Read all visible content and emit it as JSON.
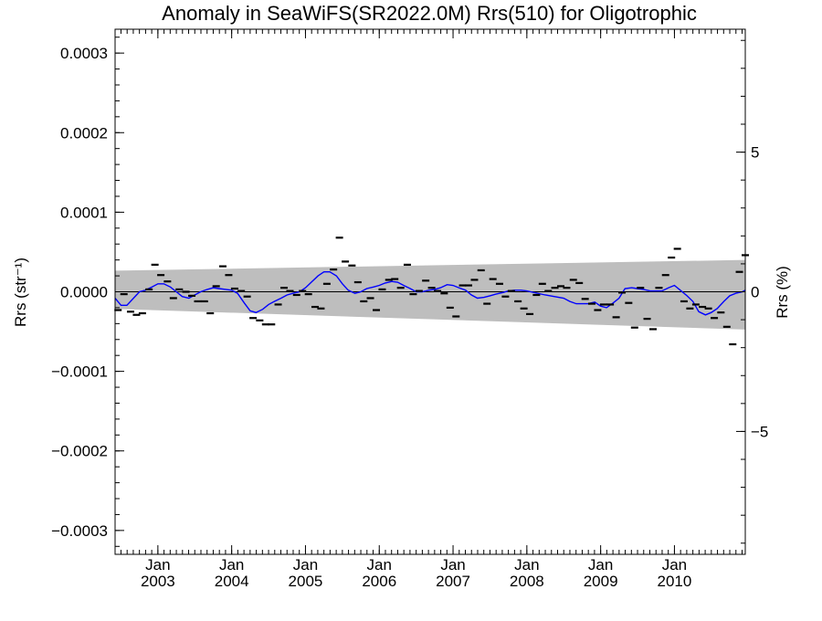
{
  "chart_data": {
    "type": "scatter",
    "title": "Anomaly in SeaWiFS(SR2022.0M) Rrs(510) for Oligotrophic",
    "ylabel": "Rrs (str⁻¹)",
    "y2label": "Rrs (%)",
    "xlim": [
      2002.42,
      2010.96
    ],
    "ylim": [
      -0.00033,
      0.00033
    ],
    "y2lim": [
      -9.4,
      9.4
    ],
    "yticks": [
      {
        "value": 0.0003,
        "label": "0.0003"
      },
      {
        "value": 0.0002,
        "label": "0.0002"
      },
      {
        "value": 0.0001,
        "label": "0.0001"
      },
      {
        "value": 0.0,
        "label": "0.0000"
      },
      {
        "value": -0.0001,
        "label": "−0.0001"
      },
      {
        "value": -0.0002,
        "label": "−0.0002"
      },
      {
        "value": -0.0003,
        "label": "−0.0003"
      }
    ],
    "y2ticks": [
      {
        "value": 5,
        "label": "5"
      },
      {
        "value": 0,
        "label": "0"
      },
      {
        "value": -5,
        "label": "−5"
      }
    ],
    "xticks": [
      {
        "value": 2003.0,
        "month": "Jan",
        "year": "2003"
      },
      {
        "value": 2004.0,
        "month": "Jan",
        "year": "2004"
      },
      {
        "value": 2005.0,
        "month": "Jan",
        "year": "2005"
      },
      {
        "value": 2006.0,
        "month": "Jan",
        "year": "2006"
      },
      {
        "value": 2007.0,
        "month": "Jan",
        "year": "2007"
      },
      {
        "value": 2008.0,
        "month": "Jan",
        "year": "2008"
      },
      {
        "value": 2009.0,
        "month": "Jan",
        "year": "2009"
      },
      {
        "value": 2010.0,
        "month": "Jan",
        "year": "2010"
      }
    ],
    "band": {
      "x": [
        2002.42,
        2010.96
      ],
      "upper": [
        2.65e-05,
        4e-05
      ],
      "lower": [
        -2.15e-05,
        -4.75e-05
      ],
      "color": "#bebebe"
    },
    "zero_line": 0,
    "series": [
      {
        "style": "markers",
        "color": "#000000",
        "x": [
          2002.46,
          2002.54,
          2002.63,
          2002.71,
          2002.79,
          2002.88,
          2002.96,
          2003.04,
          2003.13,
          2003.21,
          2003.29,
          2003.38,
          2003.46,
          2003.54,
          2003.63,
          2003.71,
          2003.79,
          2003.88,
          2003.96,
          2004.04,
          2004.13,
          2004.21,
          2004.29,
          2004.38,
          2004.46,
          2004.54,
          2004.63,
          2004.71,
          2004.79,
          2004.88,
          2004.96,
          2005.04,
          2005.13,
          2005.21,
          2005.29,
          2005.38,
          2005.46,
          2005.54,
          2005.63,
          2005.71,
          2005.79,
          2005.88,
          2005.96,
          2006.04,
          2006.13,
          2006.21,
          2006.29,
          2006.38,
          2006.46,
          2006.54,
          2006.63,
          2006.71,
          2006.79,
          2006.88,
          2006.96,
          2007.04,
          2007.13,
          2007.21,
          2007.29,
          2007.38,
          2007.46,
          2007.54,
          2007.63,
          2007.71,
          2007.79,
          2007.88,
          2007.96,
          2008.04,
          2008.13,
          2008.21,
          2008.29,
          2008.38,
          2008.46,
          2008.54,
          2008.63,
          2008.71,
          2008.79,
          2008.88,
          2008.96,
          2009.04,
          2009.13,
          2009.21,
          2009.29,
          2009.38,
          2009.46,
          2009.54,
          2009.63,
          2009.71,
          2009.79,
          2009.88,
          2009.96,
          2010.04,
          2010.13,
          2010.21,
          2010.29,
          2010.38,
          2010.46,
          2010.54,
          2010.63,
          2010.71,
          2010.79,
          2010.88,
          2010.96
        ],
        "y": [
          -2.3e-05,
          -3e-06,
          -2.5e-05,
          -2.9e-05,
          -2.7e-05,
          3e-06,
          3.4e-05,
          2.1e-05,
          1.3e-05,
          -8e-06,
          3e-06,
          0.0,
          -5e-06,
          -1.2e-05,
          -1.2e-05,
          -2.7e-05,
          7e-06,
          3.2e-05,
          2.1e-05,
          4e-06,
          1e-06,
          -6e-06,
          -3.3e-05,
          -3.6e-05,
          -4.1e-05,
          -4.1e-05,
          -1.6e-05,
          5e-06,
          1e-06,
          -4e-06,
          1e-06,
          -3e-06,
          -1.9e-05,
          -2.1e-05,
          1e-05,
          2.8e-05,
          6.8e-05,
          3.8e-05,
          3.3e-05,
          1.2e-05,
          -1.2e-05,
          -8e-06,
          -2.3e-05,
          3e-06,
          1.5e-05,
          1.6e-05,
          5e-06,
          3.4e-05,
          -3e-06,
          1e-06,
          1.4e-05,
          5e-06,
          1e-06,
          -2e-06,
          -2e-05,
          -3.1e-05,
          8e-06,
          8e-06,
          1.5e-05,
          2.7e-05,
          -1.5e-05,
          1.6e-05,
          1e-05,
          -6e-06,
          1e-06,
          -1.2e-05,
          -2.1e-05,
          -2.8e-05,
          -4e-06,
          1e-05,
          1e-06,
          5e-06,
          7e-06,
          5e-06,
          1.5e-05,
          1.1e-05,
          -9e-06,
          -1.5e-05,
          -2.3e-05,
          -1.6e-05,
          -1.6e-05,
          -3.2e-05,
          -1e-06,
          -1.4e-05,
          -4.5e-05,
          5e-06,
          -3.4e-05,
          -4.7e-05,
          5e-06,
          2.1e-05,
          4.3e-05,
          5.4e-05,
          -1.2e-05,
          -2.1e-05,
          -1.6e-05,
          -1.9e-05,
          -2.1e-05,
          -3.3e-05,
          -2.6e-05,
          -4.4e-05,
          -6.6e-05,
          2.5e-05,
          4.6e-05
        ]
      },
      {
        "style": "line",
        "color": "#0000ff",
        "x": [
          2002.42,
          2002.5,
          2002.58,
          2002.67,
          2002.75,
          2002.83,
          2002.92,
          2003.0,
          2003.08,
          2003.17,
          2003.25,
          2003.33,
          2003.42,
          2003.5,
          2003.58,
          2003.67,
          2003.75,
          2003.83,
          2003.92,
          2004.0,
          2004.08,
          2004.17,
          2004.25,
          2004.33,
          2004.42,
          2004.5,
          2004.58,
          2004.67,
          2004.75,
          2004.83,
          2004.92,
          2005.0,
          2005.08,
          2005.17,
          2005.25,
          2005.33,
          2005.42,
          2005.5,
          2005.58,
          2005.67,
          2005.75,
          2005.83,
          2005.92,
          2006.0,
          2006.08,
          2006.17,
          2006.25,
          2006.33,
          2006.42,
          2006.5,
          2006.58,
          2006.67,
          2006.75,
          2006.83,
          2006.92,
          2007.0,
          2007.08,
          2007.17,
          2007.25,
          2007.33,
          2007.42,
          2007.5,
          2007.58,
          2007.67,
          2007.75,
          2007.83,
          2007.92,
          2008.0,
          2008.25,
          2008.5,
          2008.58,
          2008.67,
          2008.75,
          2008.83,
          2008.92,
          2009.0,
          2009.08,
          2009.17,
          2009.25,
          2009.33,
          2009.42,
          2009.5,
          2009.58,
          2009.67,
          2009.75,
          2009.83,
          2009.92,
          2010.0,
          2010.08,
          2010.17,
          2010.25,
          2010.33,
          2010.42,
          2010.5,
          2010.58,
          2010.67,
          2010.75,
          2010.83,
          2010.92,
          2010.96
        ],
        "y": [
          -8e-06,
          -1.7e-05,
          -1.7e-05,
          -8e-06,
          0.0,
          2e-06,
          6e-06,
          1e-05,
          1e-05,
          6e-06,
          0.0,
          -6e-06,
          -8e-06,
          -4e-06,
          0.0,
          3e-06,
          5e-06,
          4e-06,
          3e-06,
          2e-06,
          -2e-06,
          -1.4e-05,
          -2.4e-05,
          -2.6e-05,
          -2.2e-05,
          -1.6e-05,
          -1.2e-05,
          -8e-06,
          -4e-06,
          -2e-06,
          0.0,
          5e-06,
          1.2e-05,
          2e-05,
          2.5e-05,
          2.5e-05,
          2e-05,
          1e-05,
          2e-06,
          -2e-06,
          0.0,
          4e-06,
          6e-06,
          8e-06,
          1.1e-05,
          1.3e-05,
          1.2e-05,
          8e-06,
          4e-06,
          0.0,
          0.0,
          2e-06,
          3e-06,
          5e-06,
          9e-06,
          8e-06,
          5e-06,
          2e-06,
          -4e-06,
          -8e-06,
          -7e-06,
          -5e-06,
          -3e-06,
          -1e-06,
          1e-06,
          2e-06,
          2e-06,
          1e-06,
          -4e-06,
          -8e-06,
          -1.2e-05,
          -1.5e-05,
          -1.5e-05,
          -1.5e-05,
          -1.3e-05,
          -1.8e-05,
          -2e-05,
          -1.4e-05,
          -8e-06,
          4e-06,
          5e-06,
          4e-06,
          3e-06,
          1e-06,
          1e-06,
          1e-06,
          5e-06,
          8e-06,
          2e-06,
          -5e-06,
          -1.2e-05,
          -2.5e-05,
          -2.9e-05,
          -2.6e-05,
          -2.1e-05,
          -1.2e-05,
          -5e-06,
          -2e-06,
          0.0,
          2e-06
        ]
      }
    ]
  }
}
